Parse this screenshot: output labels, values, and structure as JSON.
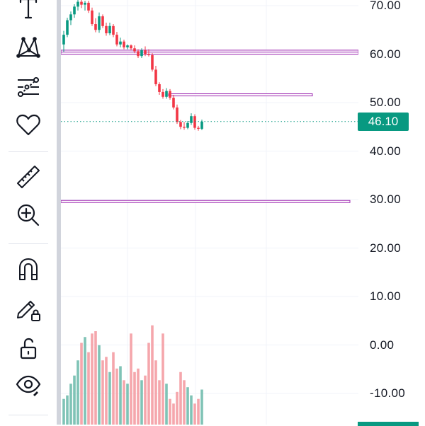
{
  "toolbar": {
    "tools": [
      {
        "name": "text-tool",
        "icon": "text-icon"
      },
      {
        "name": "pattern-tool",
        "icon": "xabcd-pattern-icon"
      },
      {
        "name": "prediction-tool",
        "icon": "forecast-icon"
      },
      {
        "name": "favorites-tool",
        "icon": "heart-icon"
      },
      {
        "name": "measure-tool",
        "icon": "ruler-icon"
      },
      {
        "name": "zoom-tool",
        "icon": "zoom-in-icon"
      },
      {
        "name": "magnet-tool",
        "icon": "magnet-icon"
      },
      {
        "name": "lock-drawing-tool",
        "icon": "pencil-lock-icon"
      },
      {
        "name": "lock-all-tool",
        "icon": "unlock-icon"
      },
      {
        "name": "hide-tool",
        "icon": "eye-icon"
      }
    ]
  },
  "price_axis": {
    "ticks": [
      "70.00",
      "60.00",
      "50.00",
      "40.00",
      "30.00",
      "20.00",
      "10.00",
      "0.00",
      "-10.00"
    ],
    "last_price": "46.10"
  },
  "colors": {
    "up": "#089981",
    "down": "#f23645",
    "volume_up": "#7fc3b6",
    "volume_down": "#f5a6ac",
    "level_line": "#9c27b0",
    "grid": "#f0f3fa"
  },
  "chart_data": {
    "type": "candlestick",
    "y_axis": {
      "min": -10,
      "max": 70,
      "ticks": [
        70,
        60,
        50,
        40,
        30,
        20,
        10,
        0,
        -10
      ]
    },
    "last_price": 46.1,
    "horizontal_levels": [
      {
        "price": 60.6
      },
      {
        "price": 60.2
      },
      {
        "price": 51.6
      },
      {
        "price": 29.6
      }
    ],
    "candles": [
      {
        "o": 62.0,
        "h": 64.8,
        "l": 60.5,
        "c": 64.0
      },
      {
        "o": 64.0,
        "h": 67.5,
        "l": 63.5,
        "c": 67.0
      },
      {
        "o": 67.0,
        "h": 68.8,
        "l": 66.0,
        "c": 68.2
      },
      {
        "o": 68.2,
        "h": 70.3,
        "l": 67.5,
        "c": 69.8
      },
      {
        "o": 69.8,
        "h": 71.2,
        "l": 69.0,
        "c": 70.8
      },
      {
        "o": 70.8,
        "h": 71.5,
        "l": 69.5,
        "c": 70.2
      },
      {
        "o": 70.2,
        "h": 71.0,
        "l": 69.0,
        "c": 70.6
      },
      {
        "o": 70.6,
        "h": 71.0,
        "l": 68.5,
        "c": 69.0
      },
      {
        "o": 69.0,
        "h": 69.6,
        "l": 65.8,
        "c": 66.2
      },
      {
        "o": 66.2,
        "h": 67.4,
        "l": 64.5,
        "c": 65.0
      },
      {
        "o": 65.0,
        "h": 68.6,
        "l": 64.4,
        "c": 67.8
      },
      {
        "o": 67.8,
        "h": 68.2,
        "l": 65.4,
        "c": 65.8
      },
      {
        "o": 65.8,
        "h": 66.5,
        "l": 63.8,
        "c": 64.3
      },
      {
        "o": 64.3,
        "h": 66.5,
        "l": 63.9,
        "c": 65.8
      },
      {
        "o": 65.8,
        "h": 66.2,
        "l": 63.5,
        "c": 64.0
      },
      {
        "o": 64.0,
        "h": 64.6,
        "l": 61.6,
        "c": 62.0
      },
      {
        "o": 62.0,
        "h": 63.4,
        "l": 61.4,
        "c": 62.6
      },
      {
        "o": 62.6,
        "h": 63.0,
        "l": 61.0,
        "c": 61.4
      },
      {
        "o": 61.4,
        "h": 62.0,
        "l": 61.0,
        "c": 61.8
      },
      {
        "o": 61.8,
        "h": 62.0,
        "l": 60.8,
        "c": 61.2
      },
      {
        "o": 61.2,
        "h": 61.8,
        "l": 60.2,
        "c": 60.6
      },
      {
        "o": 60.6,
        "h": 61.0,
        "l": 59.2,
        "c": 59.6
      },
      {
        "o": 59.6,
        "h": 61.2,
        "l": 59.2,
        "c": 60.8
      },
      {
        "o": 60.8,
        "h": 61.6,
        "l": 59.6,
        "c": 60.0
      },
      {
        "o": 60.0,
        "h": 61.0,
        "l": 59.5,
        "c": 59.8
      },
      {
        "o": 59.8,
        "h": 60.2,
        "l": 56.4,
        "c": 56.8
      },
      {
        "o": 56.8,
        "h": 57.6,
        "l": 53.4,
        "c": 53.8
      },
      {
        "o": 53.8,
        "h": 54.2,
        "l": 51.6,
        "c": 52.2
      },
      {
        "o": 52.2,
        "h": 52.8,
        "l": 50.8,
        "c": 51.2
      },
      {
        "o": 51.2,
        "h": 53.0,
        "l": 50.8,
        "c": 52.4
      },
      {
        "o": 52.4,
        "h": 52.8,
        "l": 50.6,
        "c": 51.0
      },
      {
        "o": 51.0,
        "h": 51.6,
        "l": 48.6,
        "c": 49.0
      },
      {
        "o": 49.0,
        "h": 49.6,
        "l": 45.6,
        "c": 46.0
      },
      {
        "o": 46.0,
        "h": 46.4,
        "l": 44.5,
        "c": 45.0
      },
      {
        "o": 45.0,
        "h": 46.0,
        "l": 44.4,
        "c": 44.8
      },
      {
        "o": 44.8,
        "h": 46.2,
        "l": 44.5,
        "c": 45.8
      },
      {
        "o": 45.8,
        "h": 47.8,
        "l": 45.4,
        "c": 47.2
      },
      {
        "o": 47.2,
        "h": 47.6,
        "l": 44.4,
        "c": 44.8
      },
      {
        "o": 44.8,
        "h": 45.2,
        "l": 44.2,
        "c": 44.6
      },
      {
        "o": 44.6,
        "h": 46.5,
        "l": 44.3,
        "c": 46.1
      }
    ],
    "volume": [
      0.22,
      0.25,
      0.35,
      0.42,
      0.55,
      0.7,
      0.75,
      0.62,
      0.78,
      0.8,
      0.68,
      0.55,
      0.58,
      0.45,
      0.62,
      0.48,
      0.5,
      0.38,
      0.35,
      0.78,
      0.45,
      0.48,
      0.38,
      0.42,
      0.7,
      0.85,
      0.55,
      0.38,
      0.78,
      0.35,
      0.22,
      0.18,
      0.28,
      0.45,
      0.38,
      0.32,
      0.25,
      0.18,
      0.22,
      0.3
    ]
  }
}
